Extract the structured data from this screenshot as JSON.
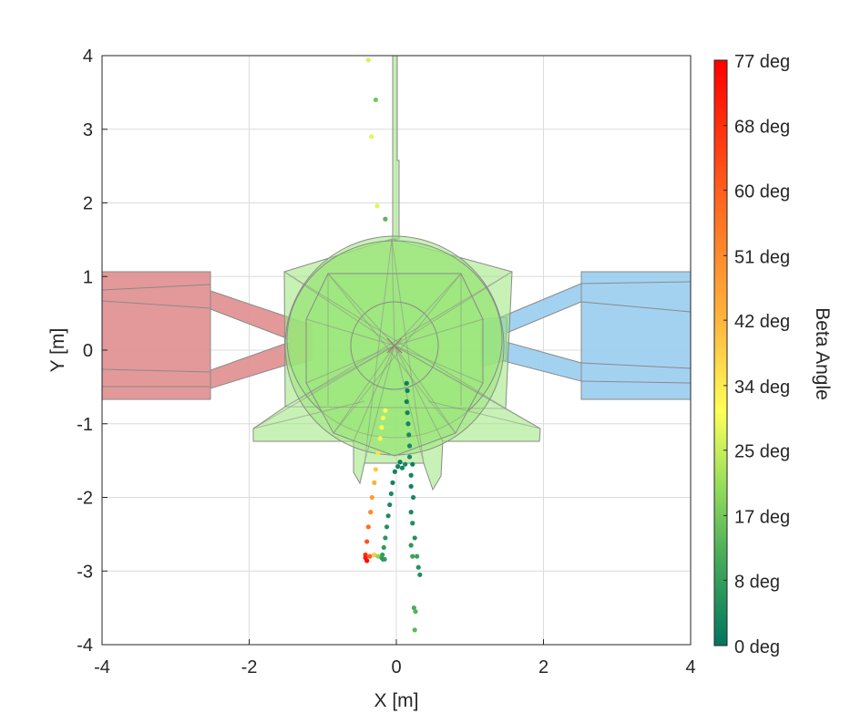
{
  "chart_data": {
    "type": "scatter",
    "xlabel": "X [m]",
    "ylabel": "Y [m]",
    "xlim": [
      -4,
      4
    ],
    "ylim": [
      -4,
      4
    ],
    "grid": true,
    "xticks": [
      -4,
      -2,
      0,
      2,
      4
    ],
    "yticks": [
      -4,
      -3,
      -2,
      -1,
      0,
      1,
      2,
      3,
      4
    ],
    "xtick_labels": [
      "-4",
      "-2",
      "0",
      "2",
      "4"
    ],
    "ytick_labels": [
      "-4",
      "-3",
      "-2",
      "-1",
      "0",
      "1",
      "2",
      "3",
      "4"
    ],
    "colorbar": {
      "label": "Beta Angle",
      "range": [
        0,
        77
      ],
      "tick_labels": [
        "77 deg",
        "68 deg",
        "60 deg",
        "51 deg",
        "42 deg",
        "34 deg",
        "25 deg",
        "17 deg",
        "8 deg",
        "0 deg"
      ],
      "tick_values": [
        77,
        68.4,
        59.9,
        51.3,
        42.8,
        34.2,
        25.7,
        17.1,
        8.6,
        0
      ],
      "colors": [
        "#00755f",
        "#4caf5a",
        "#9be05a",
        "#ffff5a",
        "#ffb43c",
        "#ff6a20",
        "#ff0000"
      ]
    },
    "background_shapes": [
      {
        "name": "left-panel",
        "color": "#e08e8e",
        "outline": "#8a8a8a"
      },
      {
        "name": "right-panel",
        "color": "#99cdee",
        "outline": "#8a8a8a"
      },
      {
        "name": "body",
        "color": "#9be67a",
        "outline": "#8a8a8a"
      }
    ],
    "series": [
      {
        "name": "trail-left",
        "points": [
          [
            -0.38,
            3.94,
            27
          ],
          [
            -0.28,
            3.4,
            17
          ],
          [
            -0.34,
            2.9,
            28
          ],
          [
            -0.26,
            1.96,
            28
          ],
          [
            -0.15,
            1.78,
            14
          ],
          [
            -0.15,
            -0.82,
            30
          ],
          [
            -0.18,
            -0.92,
            30
          ],
          [
            -0.2,
            -1.05,
            31
          ],
          [
            -0.22,
            -1.2,
            33
          ],
          [
            -0.25,
            -1.4,
            36
          ],
          [
            -0.28,
            -1.62,
            40
          ],
          [
            -0.3,
            -1.8,
            44
          ],
          [
            -0.33,
            -2.0,
            48
          ],
          [
            -0.35,
            -2.2,
            52
          ],
          [
            -0.38,
            -2.4,
            57
          ],
          [
            -0.4,
            -2.6,
            62
          ],
          [
            -0.42,
            -2.78,
            68
          ],
          [
            -0.42,
            -2.82,
            72
          ],
          [
            -0.4,
            -2.86,
            75
          ],
          [
            -0.36,
            -2.8,
            60
          ],
          [
            -0.3,
            -2.78,
            40
          ],
          [
            -0.25,
            -2.8,
            20
          ],
          [
            -0.2,
            -2.82,
            10
          ],
          [
            -0.18,
            -2.84,
            6
          ]
        ]
      },
      {
        "name": "trail-center",
        "points": [
          [
            0.14,
            -0.45,
            2
          ],
          [
            0.15,
            -0.55,
            2
          ],
          [
            0.14,
            -0.7,
            3
          ],
          [
            0.15,
            -0.85,
            3
          ],
          [
            0.16,
            -1.0,
            3
          ],
          [
            0.17,
            -1.15,
            4
          ],
          [
            0.18,
            -1.3,
            4
          ],
          [
            0.18,
            -1.45,
            5
          ],
          [
            0.12,
            -1.55,
            4
          ],
          [
            0.08,
            -1.6,
            3
          ],
          [
            0.05,
            -1.52,
            2
          ],
          [
            0.02,
            -1.58,
            3
          ],
          [
            -0.02,
            -1.65,
            3
          ],
          [
            -0.05,
            -1.8,
            3
          ],
          [
            -0.07,
            -1.95,
            4
          ],
          [
            -0.09,
            -2.1,
            4
          ],
          [
            -0.11,
            -2.25,
            5
          ],
          [
            -0.13,
            -2.4,
            6
          ],
          [
            -0.15,
            -2.55,
            7
          ],
          [
            -0.17,
            -2.68,
            8
          ],
          [
            -0.19,
            -2.78,
            9
          ],
          [
            -0.16,
            -2.84,
            8
          ]
        ]
      },
      {
        "name": "trail-right",
        "points": [
          [
            0.22,
            -1.55,
            2
          ],
          [
            0.2,
            -1.7,
            3
          ],
          [
            0.2,
            -1.85,
            3
          ],
          [
            0.23,
            -2.0,
            4
          ],
          [
            0.2,
            -2.2,
            4
          ],
          [
            0.22,
            -2.35,
            5
          ],
          [
            0.25,
            -2.55,
            6
          ],
          [
            0.2,
            -2.65,
            7
          ],
          [
            0.28,
            -2.8,
            9
          ],
          [
            0.22,
            -2.8,
            10
          ],
          [
            0.3,
            -2.95,
            6
          ],
          [
            0.32,
            -3.05,
            5
          ],
          [
            0.24,
            -3.5,
            12
          ],
          [
            0.26,
            -3.55,
            13
          ],
          [
            0.25,
            -3.8,
            14
          ]
        ]
      }
    ]
  }
}
